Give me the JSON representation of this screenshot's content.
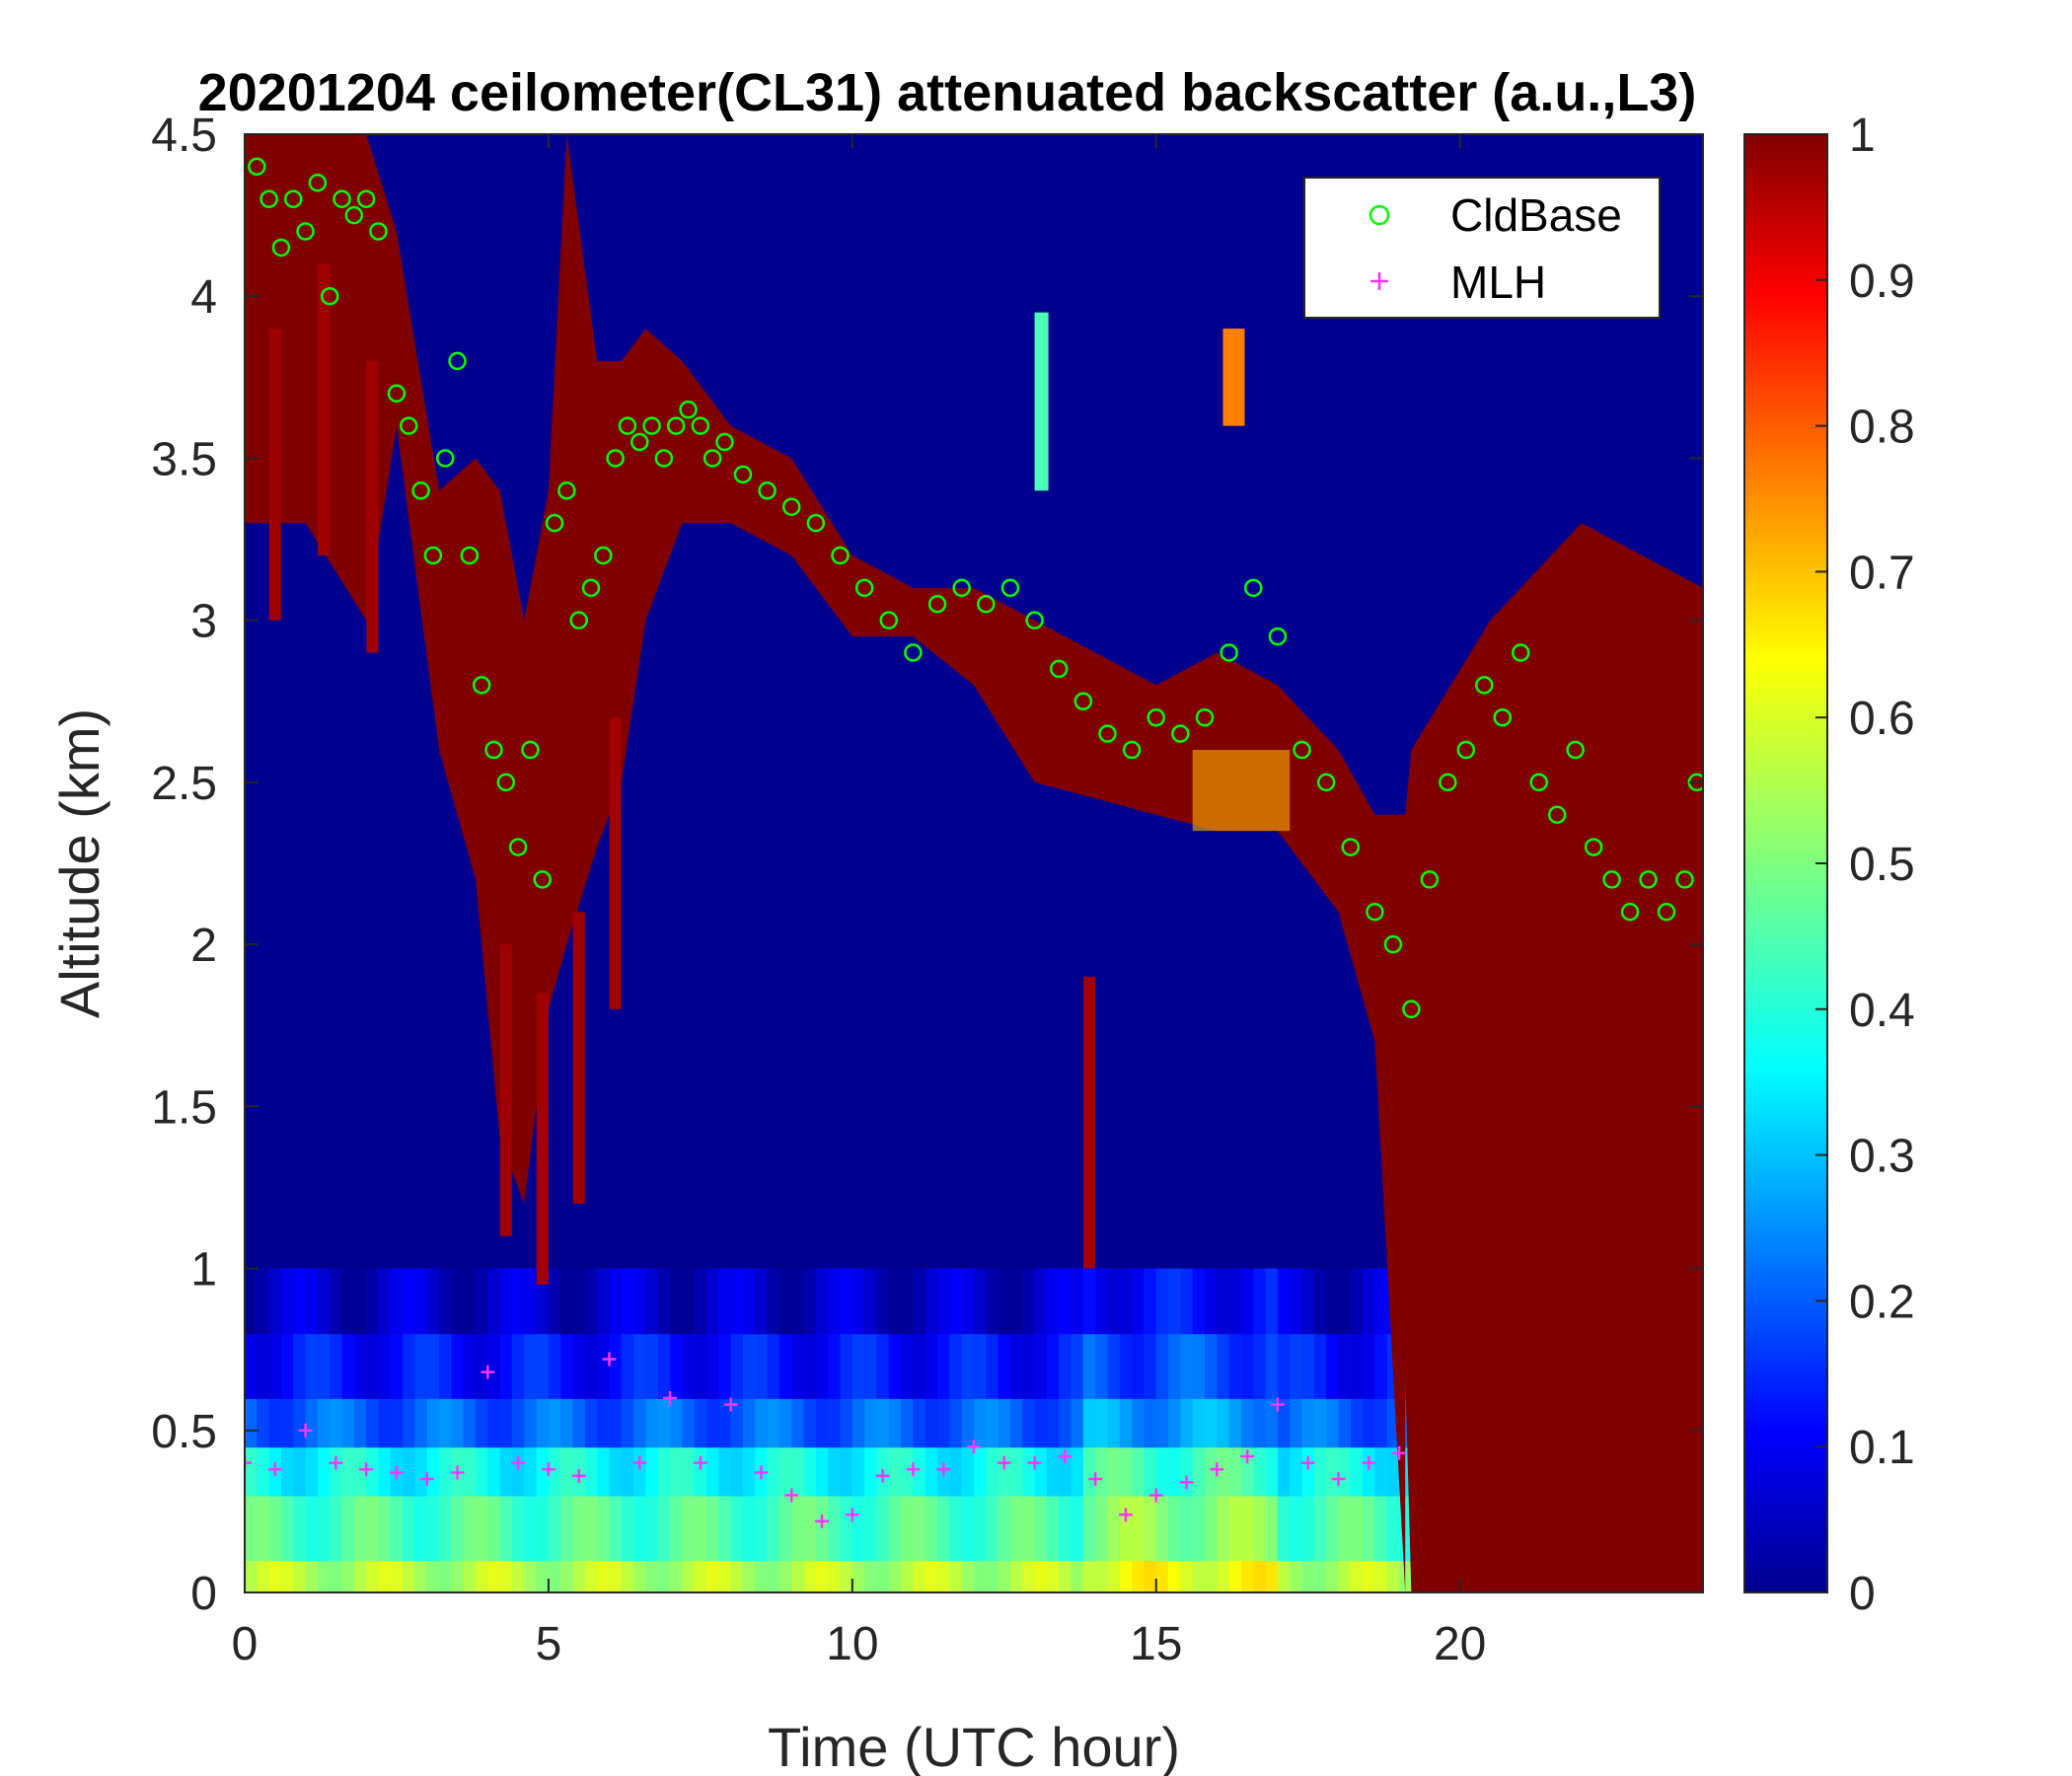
{
  "chart_data": {
    "type": "heatmap",
    "title": "20201204 ceilometer(CL31) attenuated backscatter (a.u.,L3)",
    "xlabel": "Time (UTC hour)",
    "ylabel": "Altitude (km)",
    "xlim": [
      0,
      24
    ],
    "ylim": [
      0,
      4.5
    ],
    "xticks": [
      "0",
      "5",
      "10",
      "15",
      "20"
    ],
    "xtick_values": [
      0,
      5,
      10,
      15,
      20
    ],
    "yticks": [
      "0",
      "0.5",
      "1",
      "1.5",
      "2",
      "2.5",
      "3",
      "3.5",
      "4",
      "4.5"
    ],
    "ytick_values": [
      0,
      0.5,
      1,
      1.5,
      2,
      2.5,
      3,
      3.5,
      4,
      4.5
    ],
    "colorbar": {
      "colormap": "jet",
      "clim": [
        0,
        1
      ],
      "ticks": [
        "0",
        "0.1",
        "0.2",
        "0.3",
        "0.4",
        "0.5",
        "0.6",
        "0.7",
        "0.8",
        "0.9",
        "1"
      ],
      "tick_values": [
        0,
        0.1,
        0.2,
        0.3,
        0.4,
        0.5,
        0.6,
        0.7,
        0.8,
        0.9,
        1
      ]
    },
    "background_value": 0.0,
    "legend_position": "top-right",
    "series": [
      {
        "name": "CldBase",
        "marker": "circle",
        "color": "#00ff00",
        "x": [
          0.2,
          0.4,
          0.6,
          0.8,
          1.0,
          1.2,
          1.4,
          1.6,
          1.8,
          2.0,
          2.2,
          2.5,
          2.7,
          2.9,
          3.1,
          3.3,
          3.5,
          3.7,
          3.9,
          4.1,
          4.3,
          4.5,
          4.7,
          4.9,
          5.1,
          5.3,
          5.5,
          5.7,
          5.9,
          6.1,
          6.3,
          6.5,
          6.7,
          6.9,
          7.1,
          7.3,
          7.5,
          7.7,
          7.9,
          8.2,
          8.6,
          9.0,
          9.4,
          9.8,
          10.2,
          10.6,
          11.0,
          11.4,
          11.8,
          12.2,
          12.6,
          13.0,
          13.4,
          13.8,
          14.2,
          14.6,
          15.0,
          15.4,
          15.8,
          16.2,
          16.6,
          17.0,
          17.4,
          17.8,
          18.2,
          18.6,
          18.9,
          19.2,
          19.5,
          19.8,
          20.1,
          20.4,
          20.7,
          21.0,
          21.3,
          21.6,
          21.9,
          22.2,
          22.5,
          22.8,
          23.1,
          23.4,
          23.7,
          23.9
        ],
        "y": [
          4.4,
          4.3,
          4.15,
          4.3,
          4.2,
          4.35,
          4.0,
          4.3,
          4.25,
          4.3,
          4.2,
          3.7,
          3.6,
          3.4,
          3.2,
          3.5,
          3.8,
          3.2,
          2.8,
          2.6,
          2.5,
          2.3,
          2.6,
          2.2,
          3.3,
          3.4,
          3.0,
          3.1,
          3.2,
          3.5,
          3.6,
          3.55,
          3.6,
          3.5,
          3.6,
          3.65,
          3.6,
          3.5,
          3.55,
          3.45,
          3.4,
          3.35,
          3.3,
          3.2,
          3.1,
          3.0,
          2.9,
          3.05,
          3.1,
          3.05,
          3.1,
          3.0,
          2.85,
          2.75,
          2.65,
          2.6,
          2.7,
          2.65,
          2.7,
          2.9,
          3.1,
          2.95,
          2.6,
          2.5,
          2.3,
          2.1,
          2.0,
          1.8,
          2.2,
          2.5,
          2.6,
          2.8,
          2.7,
          2.9,
          2.5,
          2.4,
          2.6,
          2.3,
          2.2,
          2.1,
          2.2,
          2.1,
          2.2,
          2.5
        ]
      },
      {
        "name": "MLH",
        "marker": "plus",
        "color": "#ff33ff",
        "x": [
          0.0,
          0.5,
          1.0,
          1.5,
          2.0,
          2.5,
          3.0,
          3.5,
          4.0,
          4.5,
          5.0,
          5.5,
          6.0,
          6.5,
          7.0,
          7.5,
          8.0,
          8.5,
          9.0,
          9.5,
          10.0,
          10.5,
          11.0,
          11.5,
          12.0,
          12.5,
          13.0,
          13.5,
          14.0,
          14.5,
          15.0,
          15.5,
          16.0,
          16.5,
          17.0,
          17.5,
          18.0,
          18.5,
          19.0
        ],
        "y": [
          0.4,
          0.38,
          0.5,
          0.4,
          0.38,
          0.37,
          0.35,
          0.37,
          0.68,
          0.4,
          0.38,
          0.36,
          0.72,
          0.4,
          0.6,
          0.4,
          0.58,
          0.37,
          0.3,
          0.22,
          0.24,
          0.36,
          0.38,
          0.38,
          0.45,
          0.4,
          0.4,
          0.42,
          0.35,
          0.24,
          0.3,
          0.34,
          0.38,
          0.42,
          0.58,
          0.4,
          0.35,
          0.4,
          0.43
        ]
      }
    ]
  }
}
